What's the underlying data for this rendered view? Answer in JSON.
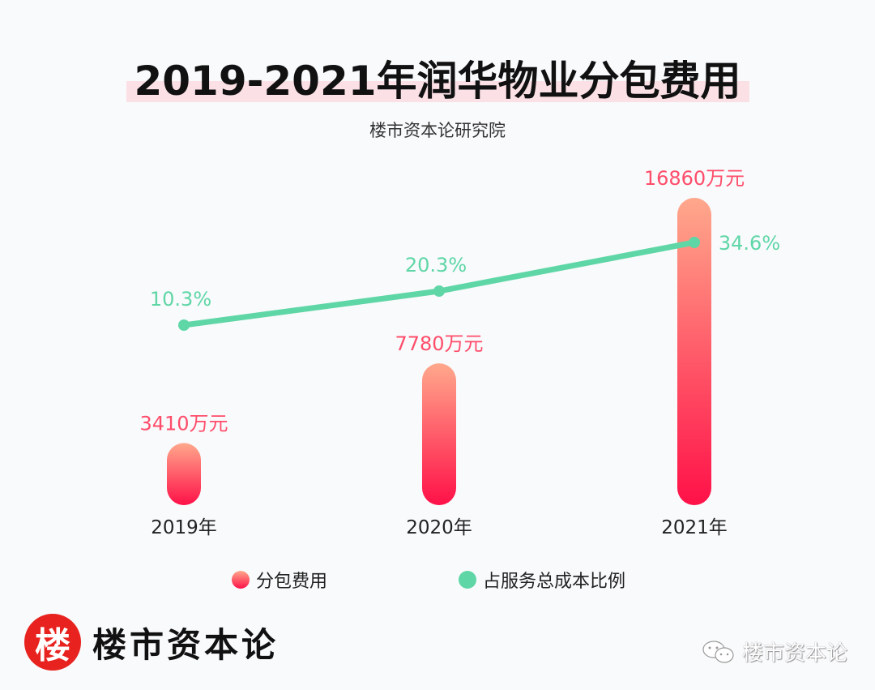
{
  "header": {
    "title": "2019-2021年润华物业分包费用",
    "subtitle": "楼市资本论研究院"
  },
  "chart_data": {
    "type": "bar",
    "title": "2019-2021年润华物业分包费用",
    "categories": [
      "2019年",
      "2020年",
      "2021年"
    ],
    "series": [
      {
        "name": "分包费用",
        "type": "bar",
        "unit": "万元",
        "values": [
          3410,
          7780,
          16860
        ],
        "labels": [
          "3410万元",
          "7780万元",
          "16860万元"
        ],
        "color_top": "#ffa88c",
        "color_bottom": "#ff1148"
      },
      {
        "name": "占服务总成本比例",
        "type": "line",
        "unit": "%",
        "values": [
          10.3,
          20.3,
          34.6
        ],
        "labels": [
          "10.3%",
          "20.3%",
          "34.6%"
        ],
        "color": "#5fd6a6"
      }
    ],
    "legend_position": "bottom",
    "grid": false
  },
  "legend": [
    {
      "label": "分包费用",
      "icon": "red-gradient-dot"
    },
    {
      "label": "占服务总成本比例",
      "icon": "green-dot"
    }
  ],
  "brand": {
    "logo_char": "楼",
    "name": "楼市资本论"
  },
  "watermark": {
    "icon": "wechat-icon",
    "text": "楼市资本论"
  },
  "colors": {
    "bar_label": "#ff4d6a",
    "line_label": "#5fd6a6",
    "axis_label": "#222222"
  }
}
